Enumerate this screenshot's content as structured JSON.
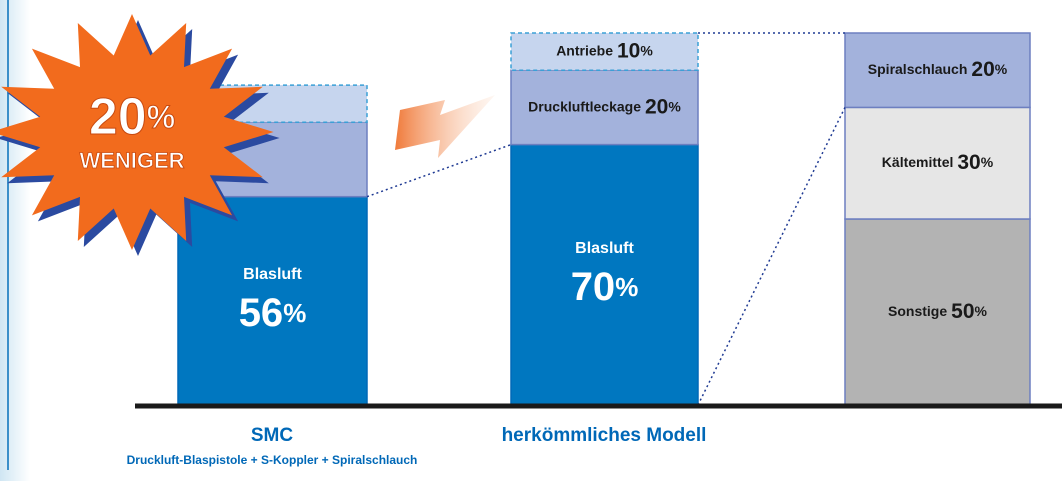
{
  "chart_data": {
    "type": "stacked_bar",
    "ylim": [
      0,
      100
    ],
    "unit": "%",
    "bars": [
      {
        "category": "SMC",
        "subtitle": "Druckluft-Blaspistole + S-Koppler + Spiralschlauch",
        "segments": [
          {
            "name": "Blasluft",
            "value": 56,
            "color": "#0077c0",
            "emphasis": true
          },
          {
            "value": 20,
            "color": "#a3b2dc"
          },
          {
            "value": 10,
            "color": "#c6d5ee",
            "dashed": true
          }
        ]
      },
      {
        "category": "herkömmliches Modell",
        "segments": [
          {
            "name": "Blasluft",
            "value": 70,
            "color": "#0077c0",
            "emphasis": true
          },
          {
            "name": "Druckluftleckage",
            "value": 20,
            "color": "#a3b2dc"
          },
          {
            "name": "Antriebe",
            "value": 10,
            "color": "#c6d5ee",
            "dashed": true
          }
        ]
      },
      {
        "segments": [
          {
            "name": "Sonstige",
            "value": 50,
            "color": "#b3b3b3"
          },
          {
            "name": "Kältemittel",
            "value": 30,
            "color": "#e6e6e6"
          },
          {
            "name": "Spiralschlauch",
            "value": 20,
            "color": "#a3b2dc"
          }
        ]
      }
    ],
    "badge": {
      "value": 20,
      "text": "WENIGER"
    }
  }
}
